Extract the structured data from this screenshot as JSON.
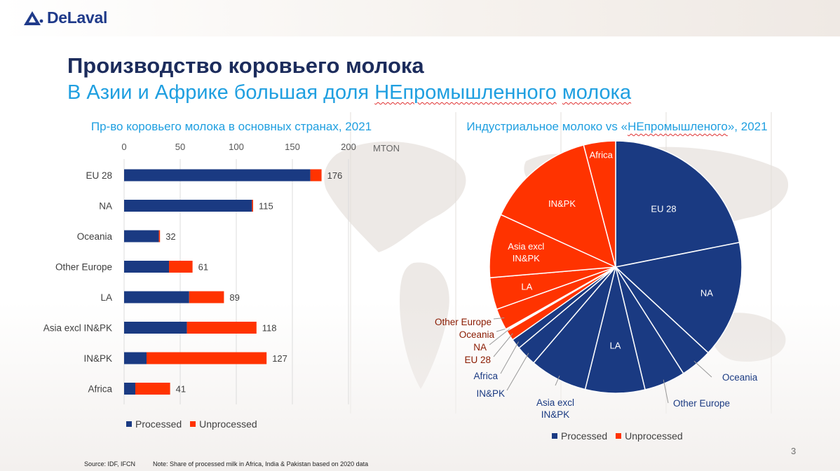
{
  "brand": {
    "name": "DeLaval",
    "color": "#1f3a8a",
    "icon": "delaval-logo-icon"
  },
  "title": "Производство коровьего молока",
  "subtitle": {
    "pre": "В Азии и Африке большая доля ",
    "word1": "НЕпромышленного",
    "mid": " ",
    "word2": "молока"
  },
  "bar_chart_title": "Пр-во коровьего молока в основных странах, 2021",
  "pie_chart_title": {
    "pre": "Индустриальное молоко vs «",
    "word": "НЕпромышленого",
    "post": "», 2021"
  },
  "page_number": "3",
  "source": "Source: IDF, IFCN",
  "note": "Note: Share of processed milk in Africa, India & Pakistan based on 2020 data",
  "colors": {
    "processed": "#1a3a82",
    "unprocessed": "#ff3300",
    "title_dark": "#1c2c5c",
    "title_blue": "#1f9fe0"
  },
  "chart_data": [
    {
      "type": "bar",
      "orientation": "horizontal",
      "stacked": true,
      "title": "Пр-во коровьего молока в основных странах, 2021",
      "unit": "MTON",
      "categories": [
        "EU 28",
        "NA",
        "Oceania",
        "Other Europe",
        "LA",
        "Asia excl IN&PK",
        "IN&PK",
        "Africa"
      ],
      "totals": [
        176,
        115,
        32,
        61,
        89,
        118,
        127,
        41
      ],
      "series": [
        {
          "name": "Processed",
          "values": [
            166,
            114,
            31,
            40,
            58,
            56,
            20,
            10
          ]
        },
        {
          "name": "Unprocessed",
          "values": [
            10,
            1,
            1,
            21,
            31,
            62,
            107,
            31
          ]
        }
      ],
      "xlim": [
        0,
        200
      ],
      "xticks": [
        0,
        50,
        100,
        150,
        200
      ],
      "grid": "vertical",
      "legend": "bottom"
    },
    {
      "type": "pie",
      "title": "Индустриальное молоко vs «НЕпромышленого», 2021",
      "slices": [
        {
          "label": "EU 28",
          "group": "Processed",
          "value": 166
        },
        {
          "label": "NA",
          "group": "Processed",
          "value": 114
        },
        {
          "label": "Oceania",
          "group": "Processed",
          "value": 31
        },
        {
          "label": "Other Europe",
          "group": "Processed",
          "value": 40
        },
        {
          "label": "LA",
          "group": "Processed",
          "value": 58
        },
        {
          "label": "Asia excl IN&PK",
          "group": "Processed",
          "value": 56
        },
        {
          "label": "IN&PK",
          "group": "Processed",
          "value": 20
        },
        {
          "label": "Africa",
          "group": "Processed",
          "value": 10
        },
        {
          "label": "EU 28",
          "group": "Unprocessed",
          "value": 10
        },
        {
          "label": "NA",
          "group": "Unprocessed",
          "value": 1
        },
        {
          "label": "Oceania",
          "group": "Unprocessed",
          "value": 1
        },
        {
          "label": "Other Europe",
          "group": "Unprocessed",
          "value": 21
        },
        {
          "label": "LA",
          "group": "Unprocessed",
          "value": 31
        },
        {
          "label": "Asia excl IN&PK",
          "group": "Unprocessed",
          "value": 62
        },
        {
          "label": "IN&PK",
          "group": "Unprocessed",
          "value": 107
        },
        {
          "label": "Africa",
          "group": "Unprocessed",
          "value": 31
        }
      ],
      "slice_labels": [
        "EU 28",
        "NA",
        "Oceania",
        "Other Europe",
        "LA",
        "Asia excl IN&PK",
        "IN&PK",
        "Africa",
        "EU 28",
        "NA",
        "Oceania",
        "Other Europe",
        "LA",
        "Asia excl IN&PK",
        "IN&PK",
        "Africa"
      ],
      "legend": "bottom",
      "legend_entries": [
        "Processed",
        "Unprocessed"
      ]
    }
  ]
}
